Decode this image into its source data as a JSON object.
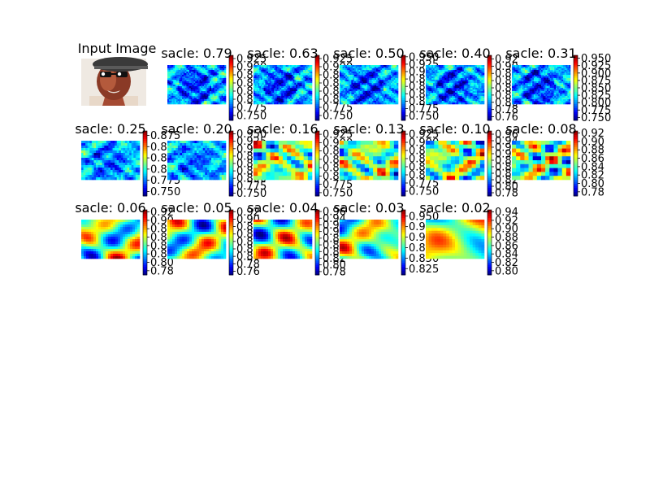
{
  "figure": {
    "background": "#ffffff",
    "colormap": "jet",
    "input_panel": {
      "title": "Input Image",
      "content": "photo-of-face-with-cap-and-glasses"
    }
  },
  "chart_data": [
    {
      "type": "heatmap",
      "title": "sacle: 0.79",
      "colorbar_ticks": [
        "0.750",
        "0.775",
        "0.800",
        "0.825",
        "0.850",
        "0.875",
        "0.900",
        "0.925"
      ],
      "cbar_range": [
        0.735,
        0.935
      ],
      "pattern": "face-detail"
    },
    {
      "type": "heatmap",
      "title": "sacle: 0.63",
      "colorbar_ticks": [
        "0.750",
        "0.775",
        "0.800",
        "0.825",
        "0.850",
        "0.875",
        "0.900",
        "0.925"
      ],
      "cbar_range": [
        0.735,
        0.935
      ],
      "pattern": "face-detail"
    },
    {
      "type": "heatmap",
      "title": "sacle: 0.50",
      "colorbar_ticks": [
        "0.750",
        "0.775",
        "0.800",
        "0.825",
        "0.850",
        "0.875",
        "0.900",
        "0.925",
        "0.950"
      ],
      "cbar_range": [
        0.735,
        0.955
      ],
      "pattern": "face-detail"
    },
    {
      "type": "heatmap",
      "title": "sacle: 0.40",
      "colorbar_ticks": [
        "0.76",
        "0.78",
        "0.80",
        "0.82",
        "0.84",
        "0.86",
        "0.88",
        "0.90",
        "0.92"
      ],
      "cbar_range": [
        0.75,
        0.93
      ],
      "pattern": "face-detail"
    },
    {
      "type": "heatmap",
      "title": "sacle: 0.31",
      "colorbar_ticks": [
        "0.750",
        "0.775",
        "0.800",
        "0.825",
        "0.850",
        "0.875",
        "0.900",
        "0.925",
        "0.950"
      ],
      "cbar_range": [
        0.74,
        0.96
      ],
      "pattern": "face-detail"
    },
    {
      "type": "heatmap",
      "title": "sacle: 0.25",
      "colorbar_ticks": [
        "0.750",
        "0.775",
        "0.800",
        "0.825",
        "0.850",
        "0.875"
      ],
      "cbar_range": [
        0.74,
        0.885
      ],
      "pattern": "face-medium"
    },
    {
      "type": "heatmap",
      "title": "sacle: 0.20",
      "colorbar_ticks": [
        "0.750",
        "0.775",
        "0.800",
        "0.825",
        "0.850",
        "0.875",
        "0.900",
        "0.925",
        "0.950"
      ],
      "cbar_range": [
        0.74,
        0.96
      ],
      "pattern": "face-medium"
    },
    {
      "type": "heatmap",
      "title": "sacle: 0.16",
      "colorbar_ticks": [
        "0.750",
        "0.775",
        "0.800",
        "0.825",
        "0.850",
        "0.875",
        "0.900",
        "0.925"
      ],
      "cbar_range": [
        0.74,
        0.935
      ],
      "pattern": "blocky"
    },
    {
      "type": "heatmap",
      "title": "sacle: 0.13",
      "colorbar_ticks": [
        "0.750",
        "0.775",
        "0.800",
        "0.825",
        "0.850",
        "0.875",
        "0.900",
        "0.925"
      ],
      "cbar_range": [
        0.735,
        0.935
      ],
      "pattern": "blocky"
    },
    {
      "type": "heatmap",
      "title": "sacle: 0.10",
      "colorbar_ticks": [
        "0.78",
        "0.80",
        "0.82",
        "0.84",
        "0.86",
        "0.88",
        "0.90",
        "0.92",
        "0.94",
        "0.96"
      ],
      "cbar_range": [
        0.77,
        0.97
      ],
      "pattern": "blocky"
    },
    {
      "type": "heatmap",
      "title": "sacle: 0.08",
      "colorbar_ticks": [
        "0.78",
        "0.80",
        "0.82",
        "0.84",
        "0.86",
        "0.88",
        "0.90",
        "0.92"
      ],
      "cbar_range": [
        0.77,
        0.925
      ],
      "pattern": "blocky"
    },
    {
      "type": "heatmap",
      "title": "sacle: 0.06",
      "colorbar_ticks": [
        "0.78",
        "0.80",
        "0.82",
        "0.84",
        "0.86",
        "0.88",
        "0.90",
        "0.92"
      ],
      "cbar_range": [
        0.77,
        0.925
      ],
      "pattern": "smooth"
    },
    {
      "type": "heatmap",
      "title": "sacle: 0.05",
      "colorbar_ticks": [
        "0.76",
        "0.78",
        "0.80",
        "0.82",
        "0.84",
        "0.86",
        "0.88",
        "0.90",
        "0.92"
      ],
      "cbar_range": [
        0.75,
        0.925
      ],
      "pattern": "smooth"
    },
    {
      "type": "heatmap",
      "title": "sacle: 0.04",
      "colorbar_ticks": [
        "0.78",
        "0.80",
        "0.82",
        "0.84",
        "0.86",
        "0.88",
        "0.90",
        "0.92",
        "0.94",
        "0.96"
      ],
      "cbar_range": [
        0.77,
        0.965
      ],
      "pattern": "smooth"
    },
    {
      "type": "heatmap",
      "title": "sacle: 0.03",
      "colorbar_ticks": [
        "0.825",
        "0.850",
        "0.875",
        "0.900",
        "0.925",
        "0.950"
      ],
      "cbar_range": [
        0.81,
        0.965
      ],
      "pattern": "smooth"
    },
    {
      "type": "heatmap",
      "title": "sacle: 0.02",
      "colorbar_ticks": [
        "0.80",
        "0.82",
        "0.84",
        "0.86",
        "0.88",
        "0.90",
        "0.92",
        "0.94"
      ],
      "cbar_range": [
        0.79,
        0.945
      ],
      "pattern": "very-smooth"
    }
  ]
}
